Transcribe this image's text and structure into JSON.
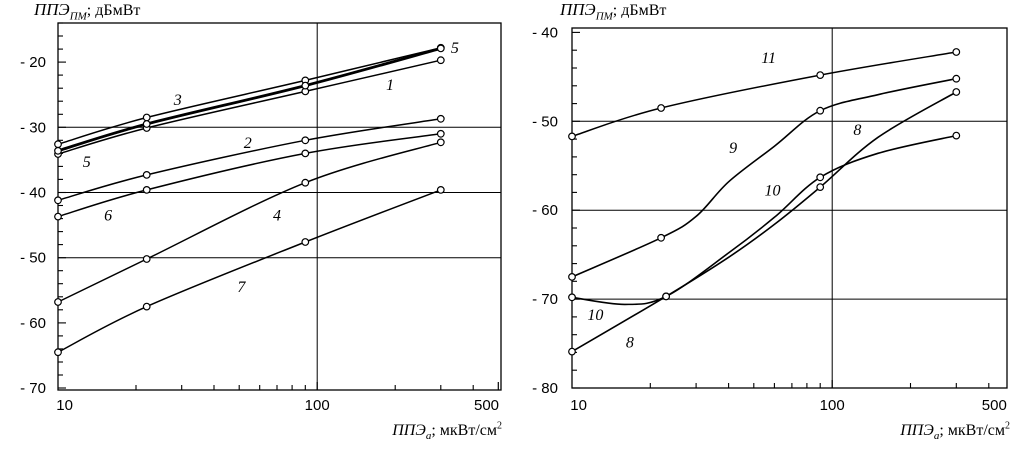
{
  "page": {
    "background": "#ffffff",
    "ink": "#000000"
  },
  "chart_data": [
    {
      "type": "line",
      "title": {
        "main": "ППЭ",
        "sub": "ПМ",
        "rest": "; дБмВт"
      },
      "xlabel": {
        "main": "ППЭ",
        "sub": "а",
        "rest": "; мкВт/см",
        "sup": "2"
      },
      "xlim": [
        10,
        512
      ],
      "ylim": [
        -70.3,
        -14
      ],
      "x_ticks": [
        {
          "v": 10,
          "lv": 10.6,
          "label": "10"
        },
        {
          "v": 100,
          "lv": 100,
          "label": "100"
        },
        {
          "v": 500,
          "lv": 450,
          "label": "500"
        }
      ],
      "x_minor": [
        20,
        30,
        40,
        50,
        60,
        70,
        80,
        90,
        200,
        300,
        400
      ],
      "y_ticks": [
        {
          "v": -20,
          "label": "- 20"
        },
        {
          "v": -30,
          "label": "- 30"
        },
        {
          "v": -40,
          "label": "- 40"
        },
        {
          "v": -50,
          "label": "- 50"
        },
        {
          "v": -60,
          "label": "- 60"
        },
        {
          "v": -70,
          "label": "- 70"
        }
      ],
      "y_minor_step": 2,
      "grid_x": [
        100
      ],
      "grid_y": [
        -30,
        -40,
        -50
      ],
      "series": [
        {
          "name": "1",
          "width": 1.5,
          "marker_x": [
            10,
            22,
            90,
            300
          ],
          "points": [
            [
              10,
              -34.1
            ],
            [
              22,
              -30.1
            ],
            [
              90,
              -24.5
            ],
            [
              300,
              -19.7
            ]
          ]
        },
        {
          "name": "2",
          "width": 1.5,
          "marker_x": [
            10,
            22,
            90,
            300
          ],
          "points": [
            [
              10,
              -41.2
            ],
            [
              22,
              -37.3
            ],
            [
              90,
              -32.0
            ],
            [
              300,
              -28.7
            ]
          ]
        },
        {
          "name": "3",
          "width": 1.5,
          "marker_x": [
            10,
            22,
            90,
            300
          ],
          "points": [
            [
              10,
              -32.6
            ],
            [
              22,
              -28.5
            ],
            [
              90,
              -22.8
            ],
            [
              300,
              -17.8
            ]
          ]
        },
        {
          "name": "5",
          "width": 2.8,
          "marker_x": [
            10,
            22,
            90,
            300
          ],
          "points": [
            [
              10,
              -33.6
            ],
            [
              22,
              -29.5
            ],
            [
              90,
              -23.6
            ],
            [
              300,
              -17.9
            ]
          ]
        },
        {
          "name": "6",
          "width": 1.5,
          "marker_x": [
            10,
            22,
            90,
            300
          ],
          "points": [
            [
              10,
              -43.7
            ],
            [
              22,
              -39.6
            ],
            [
              90,
              -34.0
            ],
            [
              300,
              -31.0
            ]
          ]
        },
        {
          "name": "4",
          "width": 1.5,
          "marker_x": [
            10,
            22,
            90,
            300
          ],
          "points": [
            [
              10,
              -56.8
            ],
            [
              22,
              -50.2
            ],
            [
              90,
              -38.5
            ],
            [
              300,
              -32.3
            ]
          ]
        },
        {
          "name": "7",
          "width": 1.5,
          "marker_x": [
            10,
            22,
            90,
            300
          ],
          "points": [
            [
              10,
              -64.5
            ],
            [
              22,
              -57.5
            ],
            [
              90,
              -47.6
            ],
            [
              300,
              -39.6
            ]
          ]
        }
      ],
      "labels": [
        {
          "text": "3",
          "x": 29,
          "y": -25.8
        },
        {
          "text": "5",
          "x": 340,
          "y": -17.8
        },
        {
          "text": "1",
          "x": 191,
          "y": -23.5
        },
        {
          "text": "5",
          "x": 12.9,
          "y": -35.3
        },
        {
          "text": "2",
          "x": 54,
          "y": -32.4
        },
        {
          "text": "6",
          "x": 15.6,
          "y": -43.5
        },
        {
          "text": "4",
          "x": 70,
          "y": -43.5
        },
        {
          "text": "7",
          "x": 51,
          "y": -54.5
        }
      ]
    },
    {
      "type": "line",
      "title": {
        "main": "ППЭ",
        "sub": "ПМ",
        "rest": "; дБмВт"
      },
      "xlabel": {
        "main": "ППЭ",
        "sub": "а",
        "rest": "; мкВт/см",
        "sup": "2"
      },
      "xlim": [
        10,
        470
      ],
      "ylim": [
        -80,
        -39.5
      ],
      "x_ticks": [
        {
          "v": 10,
          "lv": 10.6,
          "label": "10"
        },
        {
          "v": 100,
          "lv": 100,
          "label": "100"
        },
        {
          "v": 500,
          "lv": 420,
          "label": "500"
        }
      ],
      "x_minor": [
        20,
        30,
        40,
        50,
        60,
        70,
        80,
        90,
        200,
        300,
        400
      ],
      "y_ticks": [
        {
          "v": -40,
          "label": "- 40"
        },
        {
          "v": -50,
          "label": "- 50"
        },
        {
          "v": -60,
          "label": "- 60"
        },
        {
          "v": -70,
          "label": "- 70"
        },
        {
          "v": -80,
          "label": "- 80"
        }
      ],
      "y_minor_step": 2,
      "grid_x": [
        100
      ],
      "grid_y": [
        -50,
        -60,
        -70
      ],
      "series": [
        {
          "name": "11",
          "width": 1.5,
          "marker_x": [
            10,
            22,
            90,
            300
          ],
          "points": [
            [
              10,
              -51.7
            ],
            [
              22,
              -48.5
            ],
            [
              90,
              -44.8
            ],
            [
              300,
              -42.2
            ]
          ]
        },
        {
          "name": "9",
          "width": 1.6,
          "marker_x": [
            10,
            22,
            90,
            300
          ],
          "points": [
            [
              10,
              -67.5
            ],
            [
              22,
              -63.1
            ],
            [
              30,
              -60.7
            ],
            [
              40,
              -56.8
            ],
            [
              60,
              -52.8
            ],
            [
              90,
              -48.8
            ],
            [
              150,
              -47.0
            ],
            [
              300,
              -45.2
            ]
          ]
        },
        {
          "name": "10",
          "width": 1.6,
          "marker_x": [
            10,
            23,
            90,
            300
          ],
          "points": [
            [
              10,
              -69.8
            ],
            [
              16,
              -70.6
            ],
            [
              23,
              -69.7
            ],
            [
              40,
              -64.8
            ],
            [
              60,
              -60.8
            ],
            [
              90,
              -56.3
            ],
            [
              150,
              -53.6
            ],
            [
              300,
              -51.6
            ]
          ]
        },
        {
          "name": "8",
          "width": 1.6,
          "marker_x": [
            10,
            23,
            90,
            300
          ],
          "points": [
            [
              10,
              -75.9
            ],
            [
              23,
              -69.7
            ],
            [
              40,
              -65.3
            ],
            [
              60,
              -61.6
            ],
            [
              90,
              -57.4
            ],
            [
              150,
              -51.8
            ],
            [
              300,
              -46.7
            ]
          ]
        }
      ],
      "labels": [
        {
          "text": "11",
          "x": 57,
          "y": -42.9
        },
        {
          "text": "9",
          "x": 41.6,
          "y": -53.0
        },
        {
          "text": "8",
          "x": 125,
          "y": -51.0
        },
        {
          "text": "10",
          "x": 59,
          "y": -57.8
        },
        {
          "text": "10",
          "x": 12.3,
          "y": -71.8
        },
        {
          "text": "8",
          "x": 16.7,
          "y": -74.9
        }
      ]
    }
  ]
}
